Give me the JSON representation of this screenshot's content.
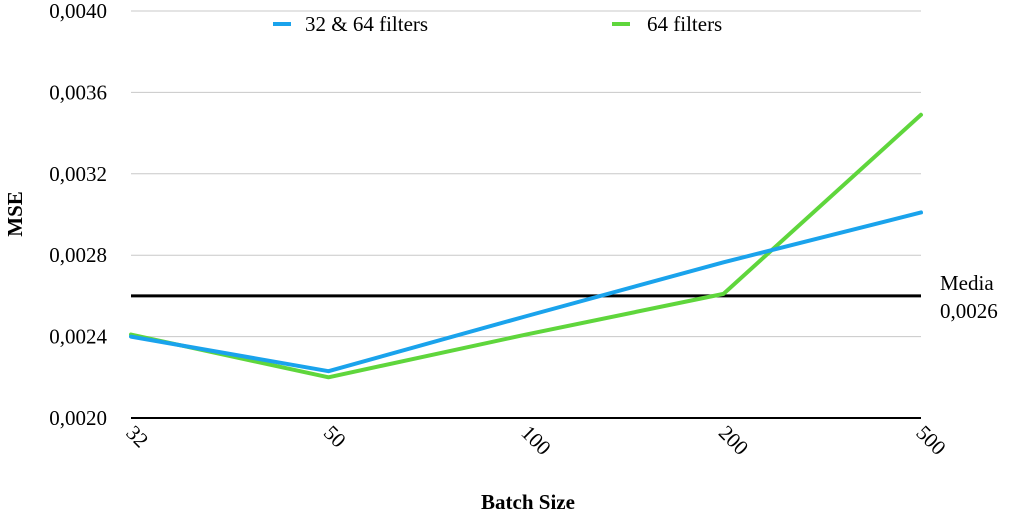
{
  "chart_data": {
    "type": "line",
    "categories": [
      "32",
      "50",
      "100",
      "200",
      "500"
    ],
    "series": [
      {
        "name": "32 & 64 filters",
        "color": "#1aa3ec",
        "values": [
          0.0024,
          0.00223,
          0.0025,
          0.002765,
          0.00301
        ]
      },
      {
        "name": "64 filters",
        "color": "#5fd63c",
        "values": [
          0.00241,
          0.0022,
          0.00241,
          0.00261,
          0.00349
        ]
      }
    ],
    "reference_line": {
      "value": 0.0026,
      "label_line1": "Media",
      "label_line2": "0,0026",
      "color": "#000000"
    },
    "xlabel": "Batch Size",
    "ylabel": "MSE",
    "ylim": [
      0.002,
      0.004
    ],
    "yticks": [
      {
        "value": 0.002,
        "label": "0,0020"
      },
      {
        "value": 0.0024,
        "label": "0,0024"
      },
      {
        "value": 0.0028,
        "label": "0,0028"
      },
      {
        "value": 0.0032,
        "label": "0,0032"
      },
      {
        "value": 0.0036,
        "label": "0,0036"
      },
      {
        "value": 0.004,
        "label": "0,0040"
      }
    ],
    "grid": true,
    "legend_position": "top"
  }
}
